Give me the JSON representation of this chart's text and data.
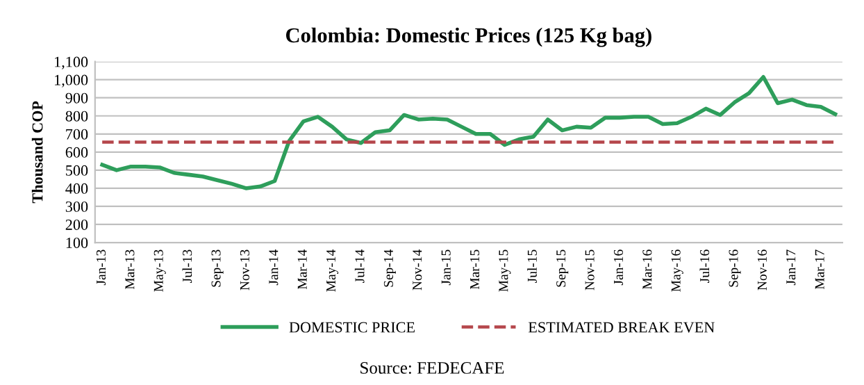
{
  "chart_data": {
    "type": "line",
    "title": "Colombia: Domestic Prices (125 Kg bag)",
    "ylabel": "Thousand COP",
    "categories": [
      "Jan-13",
      null,
      "Mar-13",
      null,
      "May-13",
      null,
      "Jul-13",
      null,
      "Sep-13",
      null,
      "Nov-13",
      null,
      "Jan-14",
      null,
      "Mar-14",
      null,
      "May-14",
      null,
      "Jul-14",
      null,
      "Sep-14",
      null,
      "Nov-14",
      null,
      "Jan-15",
      null,
      "Mar-15",
      null,
      "May-15",
      null,
      "Jul-15",
      null,
      "Sep-15",
      null,
      "Nov-15",
      null,
      "Jan-16",
      null,
      "Mar-16",
      null,
      "May-16",
      null,
      "Jul-16",
      null,
      "Sep-16",
      null,
      "Nov-16",
      null,
      "Jan-17",
      null,
      "Mar-17",
      null
    ],
    "series": [
      {
        "name": "DOMESTIC PRICE",
        "color": "#2e9e5b",
        "line_style": "solid",
        "values": [
          530,
          500,
          520,
          520,
          515,
          485,
          475,
          465,
          445,
          425,
          400,
          410,
          440,
          660,
          770,
          795,
          740,
          670,
          650,
          710,
          720,
          805,
          780,
          785,
          780,
          740,
          700,
          700,
          640,
          670,
          685,
          780,
          720,
          740,
          735,
          790,
          790,
          795,
          795,
          755,
          760,
          795,
          840,
          805,
          875,
          925,
          1015,
          870,
          890,
          860,
          850,
          810
        ]
      },
      {
        "name": "ESTIMATED BREAK EVEN",
        "color": "#b5464b",
        "line_style": "dashed",
        "values": [
          655,
          655,
          655,
          655,
          655,
          655,
          655,
          655,
          655,
          655,
          655,
          655,
          655,
          655,
          655,
          655,
          655,
          655,
          655,
          655,
          655,
          655,
          655,
          655,
          655,
          655,
          655,
          655,
          655,
          655,
          655,
          655,
          655,
          655,
          655,
          655,
          655,
          655,
          655,
          655,
          655,
          655,
          655,
          655,
          655,
          655,
          655,
          655,
          655,
          655,
          655,
          655
        ]
      }
    ],
    "ylim": [
      100,
      1100
    ],
    "yticks": [
      100,
      200,
      300,
      400,
      500,
      600,
      700,
      800,
      900,
      {
        "value": 1000,
        "label": "1,000"
      },
      {
        "value": 1100,
        "label": "1,100"
      }
    ],
    "grid": "y",
    "legend": "bottom",
    "marker": "none",
    "annotations": [
      "Source: FEDECAFE"
    ]
  }
}
